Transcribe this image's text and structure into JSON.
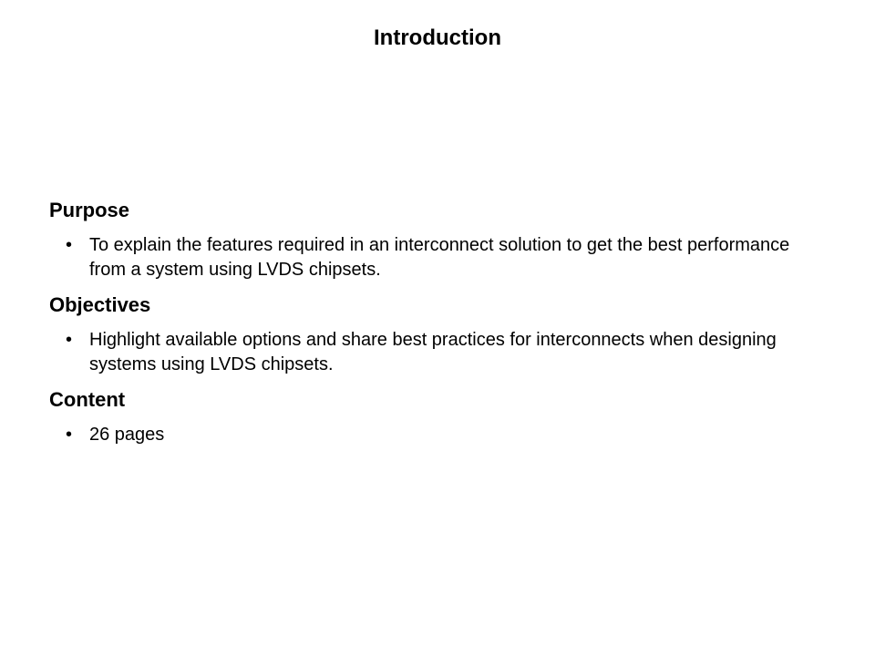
{
  "title": "Introduction",
  "sections": [
    {
      "heading": "Purpose",
      "bullets": [
        "To explain the features required in an interconnect solution to get the best performance from a system using LVDS chipsets."
      ]
    },
    {
      "heading": "Objectives",
      "bullets": [
        "Highlight available options and share best practices for interconnects when designing systems using LVDS chipsets."
      ]
    },
    {
      "heading": "Content",
      "bullets": [
        "26 pages"
      ]
    }
  ],
  "colors": {
    "background": "#ffffff",
    "text": "#000000"
  },
  "typography": {
    "title_fontsize": 24,
    "heading_fontsize": 22,
    "body_fontsize": 20,
    "font_family": "Verdana, Geneva, sans-serif"
  }
}
